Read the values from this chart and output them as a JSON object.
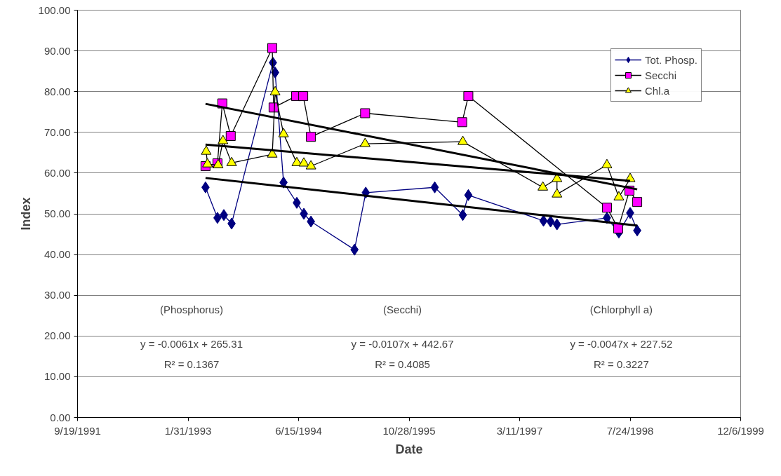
{
  "chart_data": {
    "type": "line",
    "xlabel": "Date",
    "ylabel": "Index",
    "xlim": [
      "1991-09-19",
      "1999-12-06"
    ],
    "xticks": [
      {
        "value": "1991-09-19",
        "label": "9/19/1991"
      },
      {
        "value": "1993-01-31",
        "label": "1/31/1993"
      },
      {
        "value": "1994-06-15",
        "label": "6/15/1994"
      },
      {
        "value": "1995-10-28",
        "label": "10/28/1995"
      },
      {
        "value": "1997-03-11",
        "label": "3/11/1997"
      },
      {
        "value": "1998-07-24",
        "label": "7/24/1998"
      },
      {
        "value": "1999-12-06",
        "label": "12/6/1999"
      }
    ],
    "ylim": [
      0,
      100
    ],
    "yticks": [
      {
        "value": 0,
        "label": "0.00"
      },
      {
        "value": 10,
        "label": "10.00"
      },
      {
        "value": 20,
        "label": "20.00"
      },
      {
        "value": 30,
        "label": "30.00"
      },
      {
        "value": 40,
        "label": "40.00"
      },
      {
        "value": 50,
        "label": "50.00"
      },
      {
        "value": 60,
        "label": "60.00"
      },
      {
        "value": 70,
        "label": "70.00"
      },
      {
        "value": 80,
        "label": "80.00"
      },
      {
        "value": 90,
        "label": "90.00"
      },
      {
        "value": 100,
        "label": "100.00"
      }
    ],
    "grid": "y",
    "legend": "top right",
    "series": [
      {
        "name": "Tot. Phosp.",
        "color": "#000080",
        "marker": "diamond",
        "x": [
          "1993-04-20",
          "1993-06-13",
          "1993-07-12",
          "1993-08-16",
          "1994-02-19",
          "1994-03-01",
          "1994-04-08",
          "1994-06-07",
          "1994-07-09",
          "1994-08-10",
          "1995-02-23",
          "1995-04-15",
          "1996-02-21",
          "1996-06-27",
          "1996-07-22",
          "1997-06-27",
          "1997-07-29",
          "1997-08-27",
          "1998-04-10",
          "1998-06-03",
          "1998-07-24",
          "1998-08-25"
        ],
        "values": [
          56.5,
          49.0,
          49.7,
          47.6,
          87.1,
          84.7,
          57.7,
          52.7,
          50.0,
          48.1,
          41.2,
          55.2,
          56.5,
          49.7,
          54.6,
          48.3,
          48.1,
          47.4,
          49.0,
          45.4,
          50.2,
          45.9
        ]
      },
      {
        "name": "Secchi",
        "color": "#000000",
        "colors": [
          "#ff00ff",
          "#ff00ff",
          "#ff00ff",
          "#ff00ff",
          "#ff00ff",
          "#ff00ff",
          "#ff00ff",
          "#ff00ff",
          "#ff00ff",
          "#ff00ff",
          "#ff00ff",
          "#ff00ff",
          "#ff00ff",
          "#ff00ff",
          "#ff00ff",
          "#ff00ff"
        ],
        "marker": "square",
        "x": [
          "1993-04-20",
          "1993-06-13",
          "1993-07-05",
          "1993-08-12",
          "1994-02-16",
          "1994-02-22",
          "1994-06-04",
          "1994-07-06",
          "1994-08-10",
          "1995-04-12",
          "1996-06-24",
          "1996-07-22",
          "1998-04-10",
          "1998-05-31",
          "1998-07-21",
          "1998-08-25"
        ],
        "values": [
          61.7,
          62.4,
          77.1,
          69.1,
          90.7,
          76.1,
          78.9,
          78.9,
          68.9,
          74.7,
          72.5,
          78.9,
          51.5,
          46.4,
          55.7,
          52.9
        ]
      },
      {
        "name": "Chl.a",
        "color": "#000000",
        "colors": [
          "#ffff00",
          "#ffff00",
          "#ffff00",
          "#ffff00",
          "#ffff00",
          "#ffff00",
          "#ffff00",
          "#ffff00",
          "#ffff00",
          "#ffff00",
          "#ffff00",
          "#ffff00",
          "#ffff00",
          "#ffff00",
          "#ffff00",
          "#ffff00",
          "#ffff00",
          "#ffff00",
          "#ffff00"
        ],
        "marker": "triangle",
        "x": [
          "1993-04-23",
          "1993-04-29",
          "1993-06-16",
          "1993-07-08",
          "1993-08-16",
          "1994-02-16",
          "1994-03-01",
          "1994-04-08",
          "1994-06-07",
          "1994-07-09",
          "1994-08-10",
          "1995-04-12",
          "1996-06-27",
          "1997-06-24",
          "1997-08-27",
          "1997-08-27",
          "1998-04-10",
          "1998-06-03",
          "1998-07-24"
        ],
        "values": [
          65.3,
          62.2,
          62.0,
          67.9,
          62.5,
          64.6,
          79.9,
          69.6,
          62.5,
          62.4,
          61.7,
          67.2,
          67.7,
          56.5,
          58.6,
          54.8,
          62.0,
          54.1,
          58.6
        ]
      },
      {
        "type": "line",
        "color": "#000000",
        "marker": "none",
        "x": [
          "1993-04-20",
          "1998-08-25"
        ],
        "values": [
          58.8,
          47.1
        ]
      },
      {
        "type": "line",
        "color": "#000000",
        "marker": "none",
        "x": [
          "1993-04-20",
          "1998-08-25"
        ],
        "values": [
          77.0,
          56.0
        ]
      },
      {
        "type": "line",
        "color": "#000000",
        "marker": "none",
        "x": [
          "1993-04-20",
          "1998-07-24"
        ],
        "values": [
          67.0,
          58.1
        ]
      }
    ],
    "annotations": [
      "(Phosphorus)",
      "(Secchi)",
      "(Chlorphyll a)",
      "y = -0.0061x + 265.31",
      "y = -0.0107x + 442.67",
      "y = -0.0047x + 227.52",
      "R² = 0.1367",
      "R² = 0.4085",
      "R² = 0.3227"
    ]
  }
}
